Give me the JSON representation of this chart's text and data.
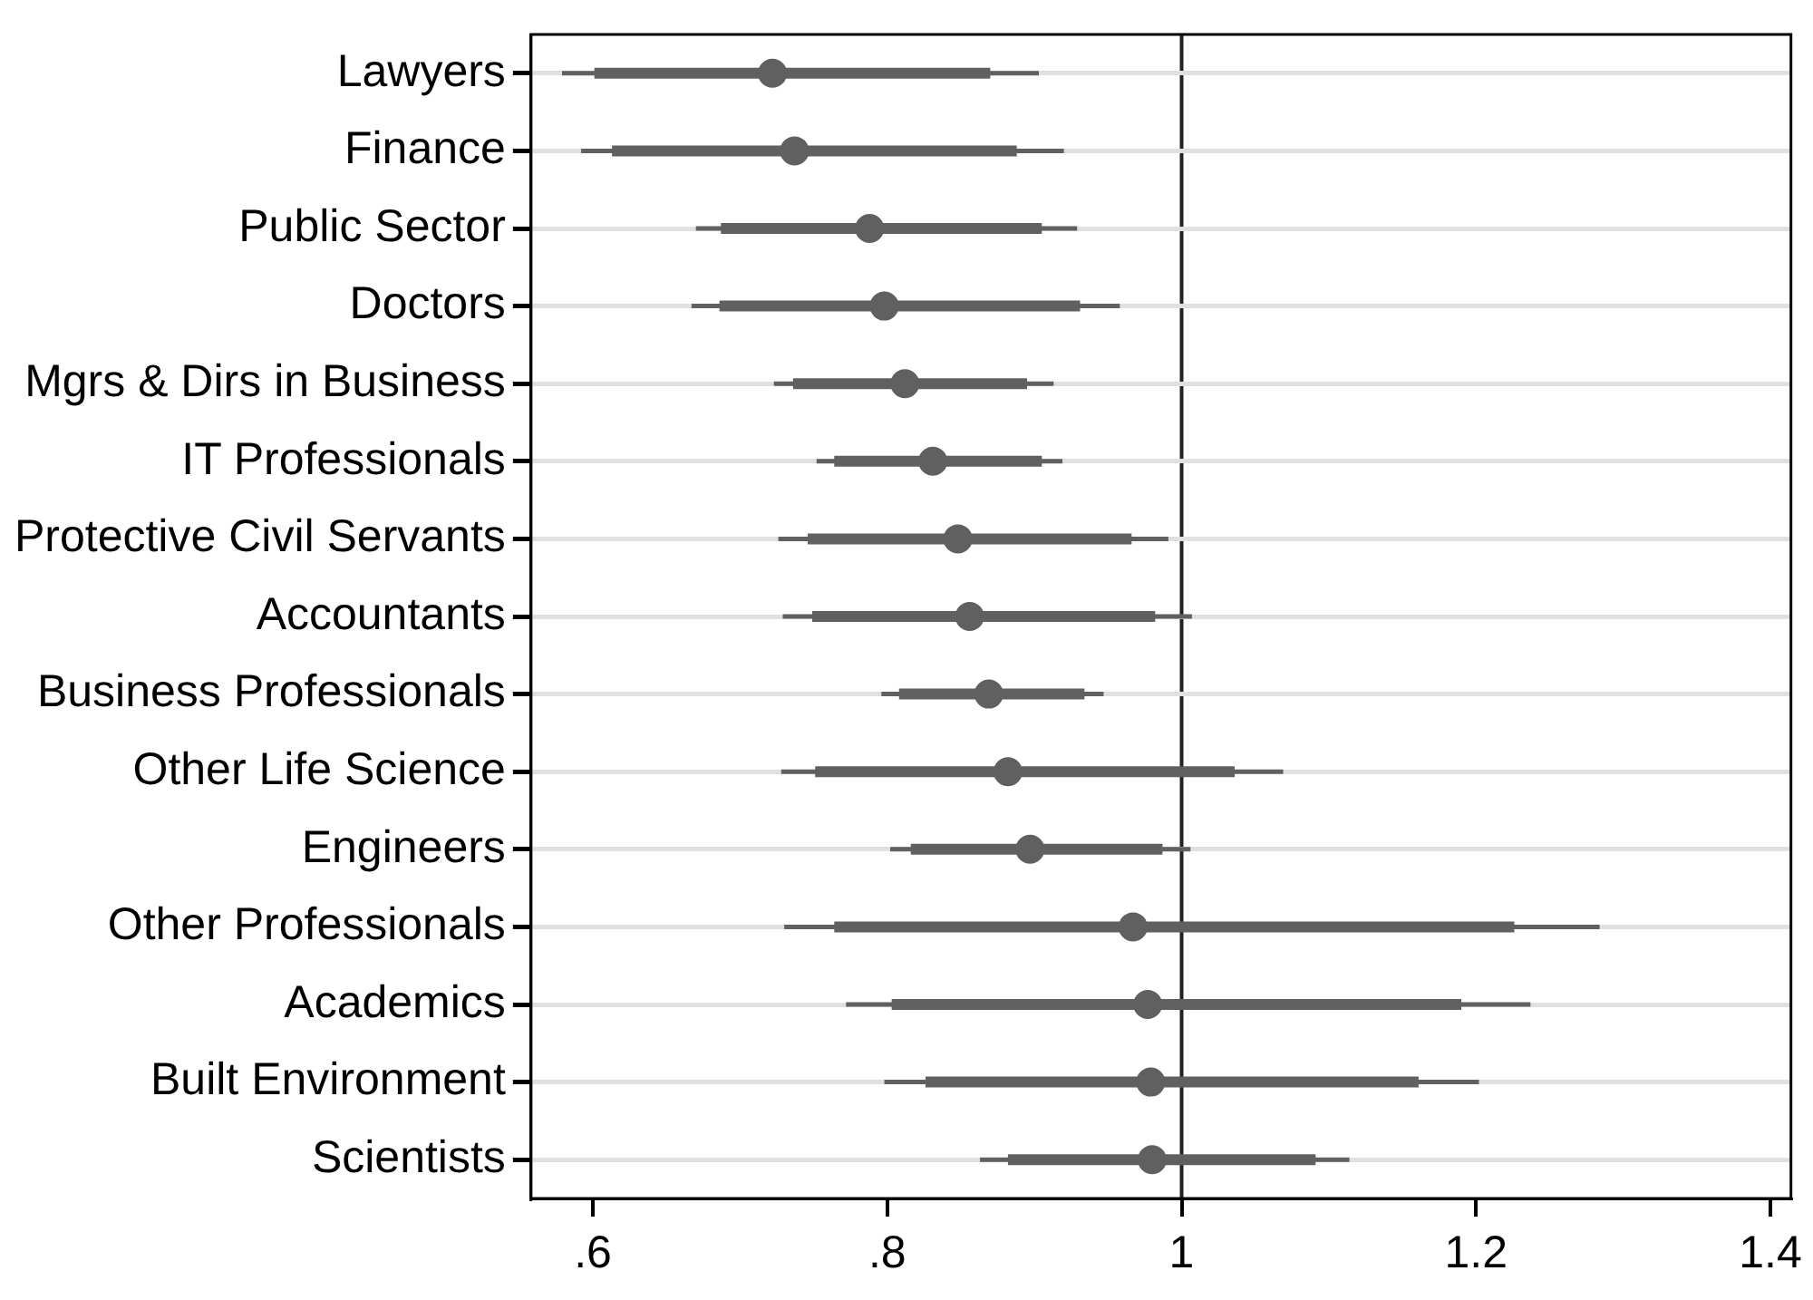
{
  "chart_data": {
    "type": "box",
    "orientation": "horizontal",
    "grid": "y",
    "color": "#606060",
    "categories": [
      "Lawyers",
      "Finance",
      "Public Sector",
      "Doctors",
      "Mgrs & Dirs in Business",
      "IT Professionals",
      "Protective Civil Servants",
      "Accountants",
      "Business Professionals",
      "Other Life Science",
      "Engineers",
      "Other Professionals",
      "Academics",
      "Built Environment",
      "Scientists"
    ],
    "xlim": [
      0.558,
      1.414
    ],
    "xticks": [
      {
        "value": 0.6,
        "label": ".6"
      },
      {
        "value": 0.8,
        "label": ".8"
      },
      1,
      {
        "value": 1.2,
        "label": "1.2"
      },
      {
        "value": 1.4,
        "label": "1.4"
      }
    ],
    "ref_lines": [
      {
        "axis": "x",
        "value": 1,
        "color": "#222222"
      }
    ],
    "boxes": [
      {
        "low": 0.579,
        "q1": 0.601,
        "median": 0.722,
        "q3": 0.87,
        "high": 0.903
      },
      {
        "low": 0.592,
        "q1": 0.613,
        "median": 0.737,
        "q3": 0.888,
        "high": 0.92
      },
      {
        "low": 0.67,
        "q1": 0.687,
        "median": 0.788,
        "q3": 0.905,
        "high": 0.929
      },
      {
        "low": 0.667,
        "q1": 0.686,
        "median": 0.798,
        "q3": 0.931,
        "high": 0.958
      },
      {
        "low": 0.723,
        "q1": 0.736,
        "median": 0.812,
        "q3": 0.895,
        "high": 0.913
      },
      {
        "low": 0.752,
        "q1": 0.764,
        "median": 0.831,
        "q3": 0.905,
        "high": 0.919
      },
      {
        "low": 0.726,
        "q1": 0.746,
        "median": 0.848,
        "q3": 0.966,
        "high": 0.991
      },
      {
        "low": 0.729,
        "q1": 0.749,
        "median": 0.856,
        "q3": 0.982,
        "high": 1.007
      },
      {
        "low": 0.796,
        "q1": 0.808,
        "median": 0.869,
        "q3": 0.934,
        "high": 0.947
      },
      {
        "low": 0.728,
        "q1": 0.751,
        "median": 0.882,
        "q3": 1.036,
        "high": 1.069
      },
      {
        "low": 0.802,
        "q1": 0.816,
        "median": 0.897,
        "q3": 0.987,
        "high": 1.006
      },
      {
        "low": 0.73,
        "q1": 0.764,
        "median": 0.967,
        "q3": 1.226,
        "high": 1.284
      },
      {
        "low": 0.772,
        "q1": 0.803,
        "median": 0.977,
        "q3": 1.19,
        "high": 1.237
      },
      {
        "low": 0.798,
        "q1": 0.826,
        "median": 0.979,
        "q3": 1.161,
        "high": 1.202
      },
      {
        "low": 0.863,
        "q1": 0.882,
        "median": 0.98,
        "q3": 1.091,
        "high": 1.114
      }
    ]
  }
}
